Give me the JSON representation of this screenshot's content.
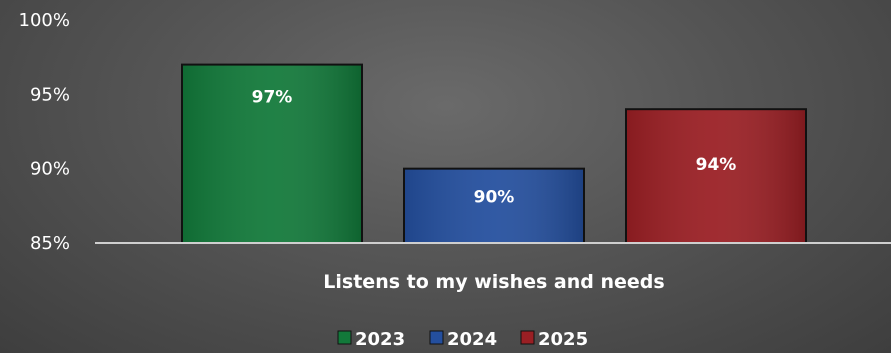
{
  "chart_data": {
    "type": "bar",
    "categories": [
      "Listens to my wishes and needs"
    ],
    "series": [
      {
        "name": "2023",
        "values": [
          97
        ],
        "label": "97%",
        "color": "#12793a"
      },
      {
        "name": "2024",
        "values": [
          90
        ],
        "label": "90%",
        "color": "#244f9e"
      },
      {
        "name": "2025",
        "values": [
          94
        ],
        "label": "94%",
        "color": "#9a1f24"
      }
    ],
    "ylim": [
      85,
      100
    ],
    "yticks": [
      {
        "value": 85,
        "label": "85%"
      },
      {
        "value": 90,
        "label": "90%"
      },
      {
        "value": 95,
        "label": "95%"
      },
      {
        "value": 100,
        "label": "100%"
      }
    ],
    "grid": false,
    "legend_position": "bottom"
  }
}
